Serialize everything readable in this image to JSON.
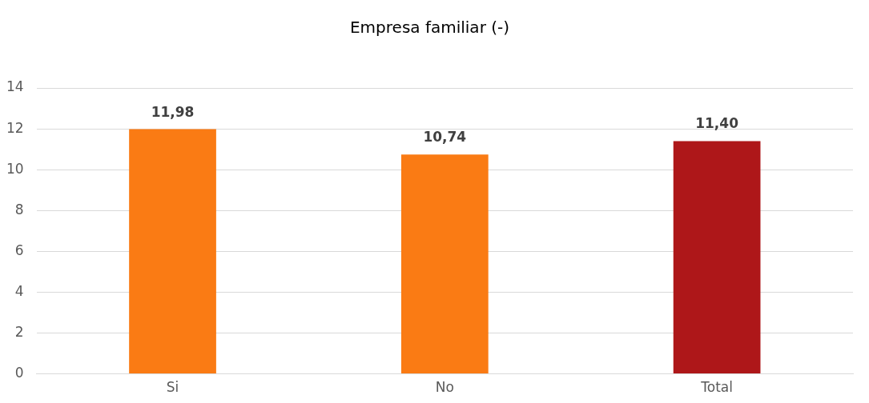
{
  "chart_data": {
    "type": "bar",
    "title": "Empresa familiar (-)",
    "categories": [
      "Si",
      "No",
      "Total"
    ],
    "values": [
      11.98,
      10.74,
      11.4
    ],
    "colors": [
      "#fa7b14",
      "#fa7b14",
      "#ae1719"
    ],
    "value_labels": [
      "11,98",
      "10,74",
      "11,40"
    ],
    "ylim": [
      0,
      14
    ],
    "yticks": [
      0,
      2,
      4,
      6,
      8,
      10,
      12,
      14
    ],
    "grid": "y",
    "legend": false
  }
}
